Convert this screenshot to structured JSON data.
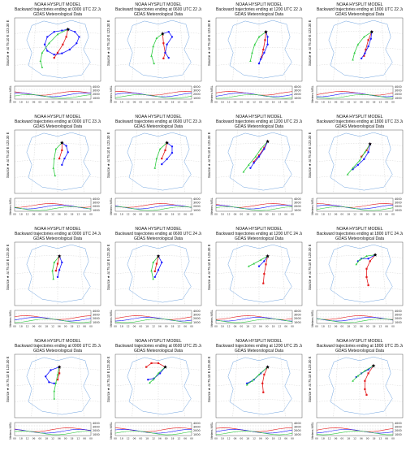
{
  "title": "NOAA HYSPLIT MODEL",
  "meteo": "GDAS Meteorological Data",
  "source_label": "Source ★ at 75.10 E 123.30 E",
  "y_axis_label": "Meters MSL",
  "height_ticks": [
    "4000",
    "3000",
    "2000",
    "1000"
  ],
  "time_ticks": [
    "00",
    "18",
    "12",
    "06",
    "00",
    "18",
    "12",
    "06",
    "00",
    "18",
    "12",
    "06",
    "00"
  ],
  "colors": {
    "series_1": "#e41a1c",
    "series_2": "#1a1aff",
    "series_3": "#2ecc40",
    "border": "#6fa3df",
    "grid": "#bbbbbb"
  },
  "chart_data": [
    {
      "type": "line",
      "subtitle": "Backward trajectories ending at 0000 UTC 22 Jan 20",
      "series": [
        {
          "values": [
            [
              0.62,
              0.18
            ],
            [
              0.6,
              0.3
            ],
            [
              0.56,
              0.42
            ],
            [
              0.5,
              0.55
            ],
            [
              0.46,
              0.63
            ]
          ]
        },
        {
          "values": [
            [
              0.62,
              0.18
            ],
            [
              0.7,
              0.22
            ],
            [
              0.75,
              0.3
            ],
            [
              0.72,
              0.4
            ],
            [
              0.64,
              0.5
            ],
            [
              0.55,
              0.56
            ],
            [
              0.46,
              0.58
            ],
            [
              0.38,
              0.52
            ],
            [
              0.35,
              0.42
            ],
            [
              0.38,
              0.3
            ],
            [
              0.46,
              0.22
            ],
            [
              0.55,
              0.2
            ],
            [
              0.62,
              0.18
            ]
          ]
        },
        {
          "values": [
            [
              0.62,
              0.18
            ],
            [
              0.5,
              0.26
            ],
            [
              0.4,
              0.4
            ],
            [
              0.32,
              0.55
            ],
            [
              0.3,
              0.68
            ],
            [
              0.32,
              0.78
            ]
          ]
        }
      ]
    },
    {
      "type": "line",
      "subtitle": "Backward trajectories ending at 0600 UTC 22 Jan 20",
      "series": [
        {
          "values": [
            [
              0.55,
              0.25
            ],
            [
              0.56,
              0.4
            ],
            [
              0.58,
              0.55
            ],
            [
              0.56,
              0.64
            ]
          ]
        },
        {
          "values": [
            [
              0.55,
              0.25
            ],
            [
              0.62,
              0.22
            ],
            [
              0.66,
              0.3
            ],
            [
              0.6,
              0.42
            ],
            [
              0.58,
              0.55
            ],
            [
              0.62,
              0.63
            ]
          ]
        },
        {
          "values": [
            [
              0.55,
              0.25
            ],
            [
              0.48,
              0.32
            ],
            [
              0.44,
              0.45
            ],
            [
              0.42,
              0.6
            ],
            [
              0.45,
              0.72
            ]
          ]
        }
      ]
    },
    {
      "type": "line",
      "subtitle": "Backward trajectories ending at 1200 UTC 22 Jan 20",
      "series": [
        {
          "values": [
            [
              0.58,
              0.22
            ],
            [
              0.57,
              0.35
            ],
            [
              0.55,
              0.5
            ],
            [
              0.53,
              0.62
            ]
          ]
        },
        {
          "values": [
            [
              0.58,
              0.22
            ],
            [
              0.6,
              0.3
            ],
            [
              0.6,
              0.42
            ],
            [
              0.56,
              0.55
            ],
            [
              0.52,
              0.65
            ],
            [
              0.5,
              0.72
            ]
          ]
        },
        {
          "values": [
            [
              0.58,
              0.22
            ],
            [
              0.5,
              0.3
            ],
            [
              0.45,
              0.42
            ],
            [
              0.42,
              0.55
            ],
            [
              0.4,
              0.68
            ]
          ]
        }
      ]
    },
    {
      "type": "line",
      "subtitle": "Backward trajectories ending at 1800 UTC 22 Jan 20",
      "series": [
        {
          "values": [
            [
              0.64,
              0.22
            ],
            [
              0.6,
              0.35
            ],
            [
              0.57,
              0.5
            ],
            [
              0.55,
              0.6
            ]
          ]
        },
        {
          "values": [
            [
              0.64,
              0.22
            ],
            [
              0.63,
              0.33
            ],
            [
              0.6,
              0.45
            ],
            [
              0.56,
              0.56
            ],
            [
              0.52,
              0.64
            ]
          ]
        },
        {
          "values": [
            [
              0.64,
              0.22
            ],
            [
              0.55,
              0.3
            ],
            [
              0.48,
              0.42
            ],
            [
              0.44,
              0.55
            ],
            [
              0.42,
              0.66
            ]
          ]
        }
      ]
    },
    {
      "type": "line",
      "subtitle": "Backward trajectories ending at 0000 UTC 23 Jan 20",
      "series": [
        {
          "values": [
            [
              0.55,
              0.2
            ],
            [
              0.55,
              0.32
            ],
            [
              0.52,
              0.45
            ]
          ]
        },
        {
          "values": [
            [
              0.55,
              0.2
            ],
            [
              0.6,
              0.25
            ],
            [
              0.62,
              0.35
            ],
            [
              0.58,
              0.45
            ],
            [
              0.55,
              0.55
            ]
          ]
        },
        {
          "values": [
            [
              0.55,
              0.2
            ],
            [
              0.48,
              0.3
            ],
            [
              0.46,
              0.45
            ],
            [
              0.45,
              0.6
            ],
            [
              0.47,
              0.72
            ]
          ]
        }
      ]
    },
    {
      "type": "line",
      "subtitle": "Backward trajectories ending at 0600 UTC 23 Jan 20",
      "series": [
        {
          "values": [
            [
              0.6,
              0.2
            ],
            [
              0.58,
              0.32
            ],
            [
              0.54,
              0.45
            ]
          ]
        },
        {
          "values": [
            [
              0.6,
              0.2
            ],
            [
              0.66,
              0.26
            ],
            [
              0.66,
              0.36
            ],
            [
              0.6,
              0.46
            ],
            [
              0.54,
              0.54
            ]
          ]
        },
        {
          "values": [
            [
              0.6,
              0.2
            ],
            [
              0.52,
              0.3
            ],
            [
              0.48,
              0.45
            ],
            [
              0.46,
              0.6
            ]
          ]
        }
      ]
    },
    {
      "type": "line",
      "subtitle": "Backward trajectories ending at 1200 UTC 23 Jan 20",
      "series": [
        {
          "values": [
            [
              0.6,
              0.18
            ],
            [
              0.56,
              0.28
            ],
            [
              0.5,
              0.4
            ],
            [
              0.44,
              0.5
            ]
          ]
        },
        {
          "values": [
            [
              0.6,
              0.18
            ],
            [
              0.56,
              0.3
            ],
            [
              0.5,
              0.42
            ],
            [
              0.44,
              0.52
            ],
            [
              0.4,
              0.6
            ]
          ]
        },
        {
          "values": [
            [
              0.6,
              0.18
            ],
            [
              0.52,
              0.3
            ],
            [
              0.46,
              0.42
            ],
            [
              0.38,
              0.55
            ],
            [
              0.32,
              0.66
            ]
          ]
        }
      ]
    },
    {
      "type": "line",
      "subtitle": "Backward trajectories ending at 1800 UTC 23 Jan 20",
      "series": [
        {
          "values": [
            [
              0.62,
              0.22
            ],
            [
              0.58,
              0.32
            ],
            [
              0.52,
              0.42
            ]
          ]
        },
        {
          "values": [
            [
              0.62,
              0.22
            ],
            [
              0.6,
              0.35
            ],
            [
              0.55,
              0.46
            ],
            [
              0.48,
              0.55
            ],
            [
              0.42,
              0.62
            ]
          ]
        },
        {
          "values": [
            [
              0.62,
              0.22
            ],
            [
              0.56,
              0.35
            ],
            [
              0.5,
              0.48
            ],
            [
              0.42,
              0.6
            ],
            [
              0.36,
              0.7
            ]
          ]
        }
      ]
    },
    {
      "type": "line",
      "subtitle": "Backward trajectories ending at 0000 UTC 24 Jan 20",
      "series": [
        {
          "values": [
            [
              0.52,
              0.22
            ],
            [
              0.5,
              0.34
            ],
            [
              0.48,
              0.45
            ]
          ]
        },
        {
          "values": [
            [
              0.52,
              0.22
            ],
            [
              0.55,
              0.32
            ],
            [
              0.52,
              0.44
            ],
            [
              0.5,
              0.55
            ]
          ]
        },
        {
          "values": [
            [
              0.52,
              0.22
            ],
            [
              0.46,
              0.32
            ],
            [
              0.44,
              0.45
            ],
            [
              0.45,
              0.58
            ]
          ]
        }
      ]
    },
    {
      "type": "line",
      "subtitle": "Backward trajectories ending at 0600 UTC 24 Jan 20",
      "series": [
        {
          "values": [
            [
              0.5,
              0.22
            ],
            [
              0.48,
              0.34
            ],
            [
              0.46,
              0.46
            ]
          ]
        },
        {
          "values": [
            [
              0.5,
              0.22
            ],
            [
              0.54,
              0.32
            ],
            [
              0.5,
              0.44
            ],
            [
              0.46,
              0.55
            ]
          ]
        },
        {
          "values": [
            [
              0.5,
              0.22
            ],
            [
              0.44,
              0.32
            ],
            [
              0.42,
              0.45
            ],
            [
              0.44,
              0.58
            ]
          ]
        }
      ]
    },
    {
      "type": "line",
      "subtitle": "Backward trajectories ending at 1200 UTC 24 Jan 20",
      "series": [
        {
          "values": [
            [
              0.6,
              0.22
            ],
            [
              0.58,
              0.35
            ],
            [
              0.56,
              0.5
            ],
            [
              0.55,
              0.65
            ]
          ]
        },
        {
          "values": [
            [
              0.6,
              0.22
            ],
            [
              0.56,
              0.3
            ],
            [
              0.5,
              0.38
            ]
          ]
        },
        {
          "values": [
            [
              0.6,
              0.22
            ],
            [
              0.52,
              0.28
            ],
            [
              0.44,
              0.34
            ],
            [
              0.38,
              0.38
            ]
          ]
        }
      ]
    },
    {
      "type": "line",
      "subtitle": "Backward trajectories ending at 1800 UTC 24 Jan 20",
      "series": [
        {
          "values": [
            [
              0.68,
              0.2
            ],
            [
              0.62,
              0.3
            ],
            [
              0.58,
              0.42
            ],
            [
              0.58,
              0.55
            ],
            [
              0.6,
              0.68
            ]
          ]
        },
        {
          "values": [
            [
              0.68,
              0.2
            ],
            [
              0.6,
              0.26
            ],
            [
              0.52,
              0.26
            ],
            [
              0.48,
              0.3
            ]
          ]
        },
        {
          "values": [
            [
              0.68,
              0.2
            ],
            [
              0.58,
              0.22
            ],
            [
              0.5,
              0.28
            ],
            [
              0.46,
              0.35
            ]
          ]
        }
      ]
    },
    {
      "type": "line",
      "subtitle": "Backward trajectories ending at 0000 UTC 25 Jan 20",
      "series": [
        {
          "values": [
            [
              0.52,
              0.2
            ],
            [
              0.52,
              0.3
            ],
            [
              0.5,
              0.4
            ]
          ]
        },
        {
          "values": [
            [
              0.52,
              0.2
            ],
            [
              0.42,
              0.25
            ],
            [
              0.36,
              0.35
            ],
            [
              0.4,
              0.44
            ],
            [
              0.46,
              0.46
            ]
          ]
        },
        {
          "values": [
            [
              0.52,
              0.2
            ],
            [
              0.5,
              0.32
            ],
            [
              0.48,
              0.45
            ],
            [
              0.46,
              0.58
            ],
            [
              0.46,
              0.7
            ]
          ]
        }
      ]
    },
    {
      "type": "line",
      "subtitle": "Backward trajectories ending at 0600 UTC 25 Jan 20",
      "series": [
        {
          "values": [
            [
              0.58,
              0.2
            ],
            [
              0.5,
              0.14
            ],
            [
              0.42,
              0.14
            ],
            [
              0.36,
              0.2
            ]
          ]
        },
        {
          "values": [
            [
              0.58,
              0.2
            ],
            [
              0.52,
              0.3
            ],
            [
              0.45,
              0.38
            ],
            [
              0.38,
              0.4
            ]
          ]
        },
        {
          "values": [
            [
              0.58,
              0.2
            ],
            [
              0.5,
              0.3
            ],
            [
              0.44,
              0.4
            ],
            [
              0.4,
              0.45
            ]
          ]
        }
      ]
    },
    {
      "type": "line",
      "subtitle": "Backward trajectories ending at 1200 UTC 25 Jan 20",
      "series": [
        {
          "values": [
            [
              0.6,
              0.2
            ],
            [
              0.56,
              0.32
            ],
            [
              0.54,
              0.46
            ],
            [
              0.55,
              0.6
            ]
          ]
        },
        {
          "values": [
            [
              0.6,
              0.2
            ],
            [
              0.52,
              0.3
            ],
            [
              0.44,
              0.4
            ],
            [
              0.36,
              0.46
            ]
          ]
        },
        {
          "values": [
            [
              0.6,
              0.2
            ],
            [
              0.5,
              0.32
            ],
            [
              0.42,
              0.42
            ],
            [
              0.36,
              0.48
            ]
          ]
        }
      ]
    },
    {
      "type": "line",
      "subtitle": "Backward trajectories ending at 1800 UTC 25 Jan 20",
      "series": [
        {
          "values": [
            [
              0.66,
              0.18
            ],
            [
              0.6,
              0.3
            ],
            [
              0.56,
              0.42
            ],
            [
              0.56,
              0.55
            ],
            [
              0.58,
              0.64
            ]
          ]
        },
        {
          "values": [
            [
              0.66,
              0.18
            ],
            [
              0.6,
              0.24
            ],
            [
              0.52,
              0.3
            ],
            [
              0.46,
              0.36
            ]
          ]
        },
        {
          "values": [
            [
              0.66,
              0.18
            ],
            [
              0.56,
              0.26
            ],
            [
              0.48,
              0.34
            ],
            [
              0.42,
              0.42
            ]
          ]
        }
      ]
    }
  ]
}
